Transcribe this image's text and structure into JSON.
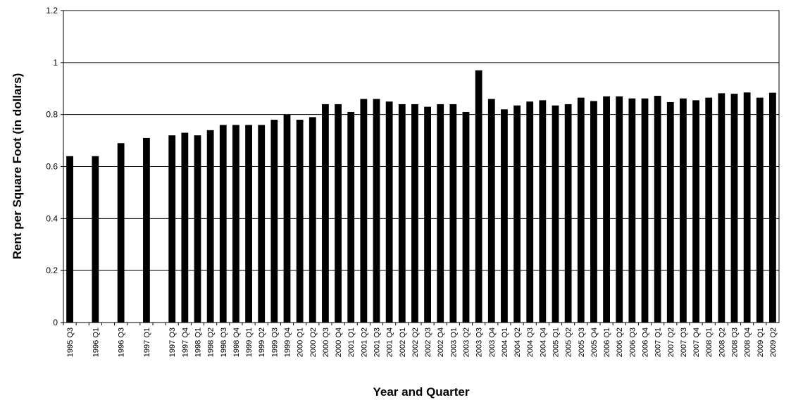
{
  "chart_data": {
    "type": "bar",
    "x_label": "Year and Quarter",
    "y_label": "Rent per Square Foot (in dollars)",
    "categories": [
      "1995 Q3",
      null,
      "1996 Q1",
      null,
      "1996 Q3",
      null,
      "1997 Q1",
      null,
      "1997 Q3",
      "1997 Q4",
      "1998 Q1",
      "1998 Q2",
      "1998 Q3",
      "1998 Q4",
      "1999 Q1",
      "1999 Q2",
      "1999 Q3",
      "1999 Q4",
      "2000 Q1",
      "2000 Q2",
      "2000 Q3",
      "2000 Q4",
      "2001 Q1",
      "2001 Q2",
      "2001 Q3",
      "2001 Q4",
      "2002 Q1",
      "2002 Q2",
      "2002 Q3",
      "2002 Q4",
      "2003 Q1",
      "2003 Q2",
      "2003 Q3",
      "2003 Q4",
      "2004 Q1",
      "2004 Q2",
      "2004 Q3",
      "2004 Q4",
      "2005 Q1",
      "2005 Q2",
      "2005 Q3",
      "2005 Q4",
      "2006 Q1",
      "2006 Q2",
      "2006 Q3",
      "2006 Q4",
      "2007 Q1",
      "2007 Q2",
      "2007 Q3",
      "2007 Q4",
      "2008 Q1",
      "2008 Q2",
      "2008 Q3",
      "2008 Q4",
      "2009 Q1",
      "2009 Q2"
    ],
    "values": [
      0.64,
      null,
      0.64,
      null,
      0.69,
      null,
      0.71,
      null,
      0.72,
      0.73,
      0.72,
      0.74,
      0.76,
      0.76,
      0.76,
      0.76,
      0.78,
      0.8,
      0.78,
      0.79,
      0.84,
      0.84,
      0.81,
      0.86,
      0.86,
      0.85,
      0.84,
      0.84,
      0.83,
      0.84,
      0.84,
      0.81,
      0.97,
      0.86,
      0.82,
      0.835,
      0.85,
      0.855,
      0.835,
      0.84,
      0.865,
      0.852,
      0.87,
      0.87,
      0.862,
      0.862,
      0.872,
      0.848,
      0.862,
      0.855,
      0.865,
      0.882,
      0.88,
      0.885,
      0.865,
      0.884
    ],
    "color": "#000000",
    "ylim": [
      0,
      1.2
    ],
    "yticks": [
      0,
      0.2,
      0.4,
      0.6,
      0.8,
      1,
      1.2
    ],
    "grid": true
  }
}
